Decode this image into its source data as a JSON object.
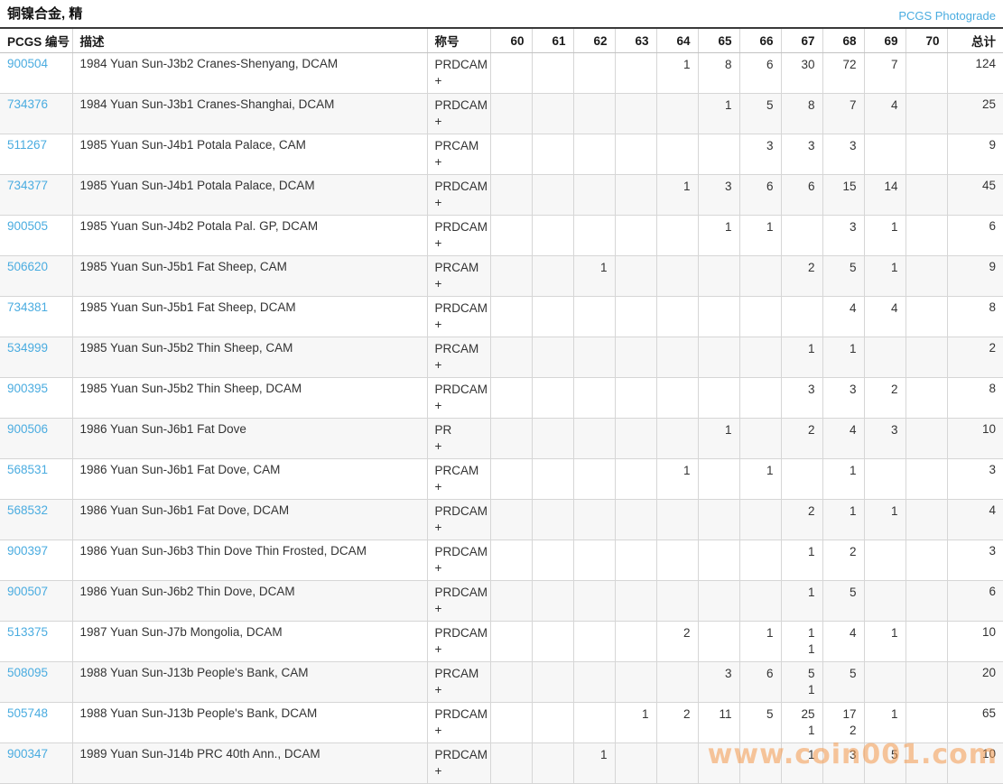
{
  "header": {
    "title": "铜镍合金, 精",
    "photograde_link": "PCGS Photograde"
  },
  "colors": {
    "link_blue": "#4aace0",
    "stripe_gray": "#f7f7f7",
    "grid_gray": "#d6d6d6",
    "watermark_orange": "#f49a4d"
  },
  "watermark": {
    "text": "www.coin001.com"
  },
  "table": {
    "pcgs_label": "PCGS 编号",
    "description_label": "描述",
    "designation_label": "称号",
    "total_label": "总计",
    "plus_label": "+",
    "grade_columns": [
      "60",
      "61",
      "62",
      "63",
      "64",
      "65",
      "66",
      "67",
      "68",
      "69",
      "70"
    ],
    "rows": [
      {
        "number": "900504",
        "description": "1984 Yuan Sun-J3b2 Cranes-Shenyang, DCAM",
        "designation": "PRDCAM",
        "grades": [
          "",
          "",
          "",
          "",
          "1",
          "8",
          "6",
          "30",
          "72",
          "7",
          ""
        ],
        "plus": [
          "",
          "",
          "",
          "",
          "",
          "",
          "",
          "",
          "",
          "",
          ""
        ],
        "total": "124"
      },
      {
        "number": "734376",
        "description": "1984 Yuan Sun-J3b1 Cranes-Shanghai, DCAM",
        "designation": "PRDCAM",
        "grades": [
          "",
          "",
          "",
          "",
          "",
          "1",
          "5",
          "8",
          "7",
          "4",
          ""
        ],
        "plus": [
          "",
          "",
          "",
          "",
          "",
          "",
          "",
          "",
          "",
          "",
          ""
        ],
        "total": "25"
      },
      {
        "number": "511267",
        "description": "1985 Yuan Sun-J4b1 Potala Palace, CAM",
        "designation": "PRCAM",
        "grades": [
          "",
          "",
          "",
          "",
          "",
          "",
          "3",
          "3",
          "3",
          "",
          ""
        ],
        "plus": [
          "",
          "",
          "",
          "",
          "",
          "",
          "",
          "",
          "",
          "",
          ""
        ],
        "total": "9"
      },
      {
        "number": "734377",
        "description": "1985 Yuan Sun-J4b1 Potala Palace, DCAM",
        "designation": "PRDCAM",
        "grades": [
          "",
          "",
          "",
          "",
          "1",
          "3",
          "6",
          "6",
          "15",
          "14",
          ""
        ],
        "plus": [
          "",
          "",
          "",
          "",
          "",
          "",
          "",
          "",
          "",
          "",
          ""
        ],
        "total": "45"
      },
      {
        "number": "900505",
        "description": "1985 Yuan Sun-J4b2 Potala Pal. GP, DCAM",
        "designation": "PRDCAM",
        "grades": [
          "",
          "",
          "",
          "",
          "",
          "1",
          "1",
          "",
          "3",
          "1",
          ""
        ],
        "plus": [
          "",
          "",
          "",
          "",
          "",
          "",
          "",
          "",
          "",
          "",
          ""
        ],
        "total": "6"
      },
      {
        "number": "506620",
        "description": "1985 Yuan Sun-J5b1 Fat Sheep, CAM",
        "designation": "PRCAM",
        "grades": [
          "",
          "",
          "1",
          "",
          "",
          "",
          "",
          "2",
          "5",
          "1",
          ""
        ],
        "plus": [
          "",
          "",
          "",
          "",
          "",
          "",
          "",
          "",
          "",
          "",
          ""
        ],
        "total": "9"
      },
      {
        "number": "734381",
        "description": "1985 Yuan Sun-J5b1 Fat Sheep, DCAM",
        "designation": "PRDCAM",
        "grades": [
          "",
          "",
          "",
          "",
          "",
          "",
          "",
          "",
          "4",
          "4",
          ""
        ],
        "plus": [
          "",
          "",
          "",
          "",
          "",
          "",
          "",
          "",
          "",
          "",
          ""
        ],
        "total": "8"
      },
      {
        "number": "534999",
        "description": "1985 Yuan Sun-J5b2 Thin Sheep, CAM",
        "designation": "PRCAM",
        "grades": [
          "",
          "",
          "",
          "",
          "",
          "",
          "",
          "1",
          "1",
          "",
          ""
        ],
        "plus": [
          "",
          "",
          "",
          "",
          "",
          "",
          "",
          "",
          "",
          "",
          ""
        ],
        "total": "2"
      },
      {
        "number": "900395",
        "description": "1985 Yuan Sun-J5b2 Thin Sheep, DCAM",
        "designation": "PRDCAM",
        "grades": [
          "",
          "",
          "",
          "",
          "",
          "",
          "",
          "3",
          "3",
          "2",
          ""
        ],
        "plus": [
          "",
          "",
          "",
          "",
          "",
          "",
          "",
          "",
          "",
          "",
          ""
        ],
        "total": "8"
      },
      {
        "number": "900506",
        "description": "1986 Yuan Sun-J6b1 Fat Dove",
        "designation": "PR",
        "grades": [
          "",
          "",
          "",
          "",
          "",
          "1",
          "",
          "2",
          "4",
          "3",
          ""
        ],
        "plus": [
          "",
          "",
          "",
          "",
          "",
          "",
          "",
          "",
          "",
          "",
          ""
        ],
        "total": "10"
      },
      {
        "number": "568531",
        "description": "1986 Yuan Sun-J6b1 Fat Dove, CAM",
        "designation": "PRCAM",
        "grades": [
          "",
          "",
          "",
          "",
          "1",
          "",
          "1",
          "",
          "1",
          "",
          ""
        ],
        "plus": [
          "",
          "",
          "",
          "",
          "",
          "",
          "",
          "",
          "",
          "",
          ""
        ],
        "total": "3"
      },
      {
        "number": "568532",
        "description": "1986 Yuan Sun-J6b1 Fat Dove, DCAM",
        "designation": "PRDCAM",
        "grades": [
          "",
          "",
          "",
          "",
          "",
          "",
          "",
          "2",
          "1",
          "1",
          ""
        ],
        "plus": [
          "",
          "",
          "",
          "",
          "",
          "",
          "",
          "",
          "",
          "",
          ""
        ],
        "total": "4"
      },
      {
        "number": "900397",
        "description": "1986 Yuan Sun-J6b3 Thin Dove Thin Frosted, DCAM",
        "designation": "PRDCAM",
        "grades": [
          "",
          "",
          "",
          "",
          "",
          "",
          "",
          "1",
          "2",
          "",
          ""
        ],
        "plus": [
          "",
          "",
          "",
          "",
          "",
          "",
          "",
          "",
          "",
          "",
          ""
        ],
        "total": "3"
      },
      {
        "number": "900507",
        "description": "1986 Yuan Sun-J6b2 Thin Dove, DCAM",
        "designation": "PRDCAM",
        "grades": [
          "",
          "",
          "",
          "",
          "",
          "",
          "",
          "1",
          "5",
          "",
          ""
        ],
        "plus": [
          "",
          "",
          "",
          "",
          "",
          "",
          "",
          "",
          "",
          "",
          ""
        ],
        "total": "6"
      },
      {
        "number": "513375",
        "description": "1987 Yuan Sun-J7b Mongolia, DCAM",
        "designation": "PRDCAM",
        "grades": [
          "",
          "",
          "",
          "",
          "2",
          "",
          "1",
          "1",
          "4",
          "1",
          ""
        ],
        "plus": [
          "",
          "",
          "",
          "",
          "",
          "",
          "",
          "1",
          "",
          "",
          ""
        ],
        "total": "10"
      },
      {
        "number": "508095",
        "description": "1988 Yuan Sun-J13b People's Bank, CAM",
        "designation": "PRCAM",
        "grades": [
          "",
          "",
          "",
          "",
          "",
          "3",
          "6",
          "5",
          "5",
          "",
          ""
        ],
        "plus": [
          "",
          "",
          "",
          "",
          "",
          "",
          "",
          "1",
          "",
          "",
          ""
        ],
        "total": "20"
      },
      {
        "number": "505748",
        "description": "1988 Yuan Sun-J13b People's Bank, DCAM",
        "designation": "PRDCAM",
        "grades": [
          "",
          "",
          "",
          "1",
          "2",
          "11",
          "5",
          "25",
          "17",
          "1",
          ""
        ],
        "plus": [
          "",
          "",
          "",
          "",
          "",
          "",
          "",
          "1",
          "2",
          "",
          ""
        ],
        "total": "65"
      },
      {
        "number": "900347",
        "description": "1989 Yuan Sun-J14b PRC 40th Ann., DCAM",
        "designation": "PRDCAM",
        "grades": [
          "",
          "",
          "1",
          "",
          "",
          "",
          "",
          "1",
          "3",
          "5",
          ""
        ],
        "plus": [
          "",
          "",
          "",
          "",
          "",
          "",
          "",
          "",
          "",
          "",
          ""
        ],
        "total": "10"
      }
    ]
  }
}
